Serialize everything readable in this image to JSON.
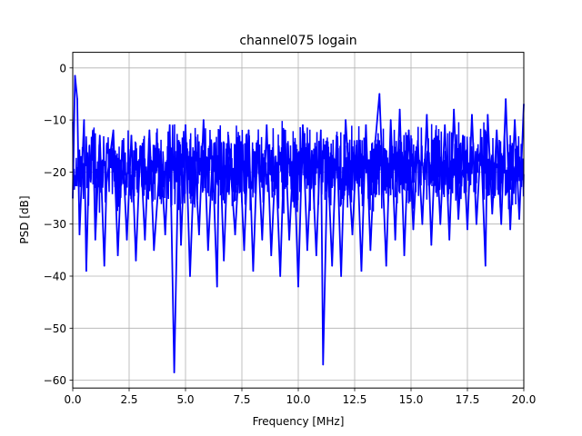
{
  "chart_data": {
    "type": "line",
    "title": "channel075 logain",
    "xlabel": "Frequency [MHz]",
    "ylabel": "PSD [dB]",
    "xlim": [
      0,
      20
    ],
    "ylim": [
      -61.5,
      3
    ],
    "x_ticks": [
      0,
      2.5,
      5,
      7.5,
      10,
      12.5,
      15,
      17.5,
      20
    ],
    "x_tick_labels": [
      "0.0",
      "2.5",
      "5.0",
      "7.5",
      "10.0",
      "12.5",
      "15.0",
      "17.5",
      "20.0"
    ],
    "y_ticks": [
      0,
      -10,
      -20,
      -30,
      -40,
      -50,
      -60
    ],
    "y_tick_labels": [
      "0",
      "−10",
      "−20",
      "−30",
      "−40",
      "−50",
      "−60"
    ],
    "grid": true,
    "series": [
      {
        "color": "#0000ff",
        "x": [
          0.0,
          0.1,
          0.2,
          0.3,
          0.5,
          0.6,
          0.7,
          0.9,
          1.0,
          1.2,
          1.4,
          1.5,
          1.8,
          2.0,
          2.2,
          2.4,
          2.6,
          2.8,
          3.0,
          3.2,
          3.4,
          3.6,
          3.9,
          4.1,
          4.3,
          4.5,
          4.7,
          4.8,
          5.0,
          5.2,
          5.4,
          5.6,
          5.8,
          6.0,
          6.2,
          6.4,
          6.5,
          6.7,
          6.9,
          7.2,
          7.4,
          7.6,
          7.8,
          8.0,
          8.2,
          8.4,
          8.6,
          8.8,
          9.0,
          9.2,
          9.4,
          9.6,
          9.8,
          10.0,
          10.2,
          10.4,
          10.6,
          10.8,
          11.0,
          11.1,
          11.3,
          11.5,
          11.7,
          11.9,
          12.1,
          12.4,
          12.6,
          12.8,
          13.0,
          13.2,
          13.4,
          13.6,
          13.7,
          13.9,
          14.1,
          14.3,
          14.5,
          14.7,
          14.9,
          15.1,
          15.3,
          15.5,
          15.7,
          15.9,
          16.1,
          16.3,
          16.5,
          16.7,
          16.9,
          17.1,
          17.3,
          17.5,
          17.7,
          17.9,
          18.1,
          18.3,
          18.4,
          18.6,
          18.8,
          19.0,
          19.2,
          19.4,
          19.6,
          19.8,
          20.0
        ],
        "y": [
          -25,
          -1.5,
          -6,
          -32,
          -10,
          -39,
          -22,
          -12,
          -33,
          -13,
          -38,
          -22,
          -12,
          -36,
          -14,
          -33,
          -13,
          -37,
          -15,
          -33,
          -12,
          -35,
          -16,
          -32,
          -11,
          -58.5,
          -14,
          -34,
          -11,
          -40,
          -16,
          -32,
          -10,
          -35,
          -17,
          -42,
          -12,
          -37,
          -13,
          -32,
          -16,
          -35,
          -12,
          -39,
          -14,
          -33,
          -11,
          -36,
          -17,
          -40,
          -12,
          -33,
          -15,
          -42,
          -11,
          -35,
          -16,
          -36,
          -12,
          -57,
          -17,
          -38,
          -13,
          -40,
          -10,
          -32,
          -14,
          -39,
          -11,
          -35,
          -15,
          -5,
          -16,
          -38,
          -10,
          -33,
          -8,
          -36,
          -12,
          -31,
          -14,
          -30,
          -9,
          -34,
          -12,
          -30,
          -11,
          -33,
          -8,
          -29,
          -13,
          -31,
          -9,
          -30,
          -14,
          -38,
          -9,
          -28,
          -12,
          -30,
          -6,
          -31,
          -10,
          -29,
          -7
        ]
      }
    ]
  }
}
